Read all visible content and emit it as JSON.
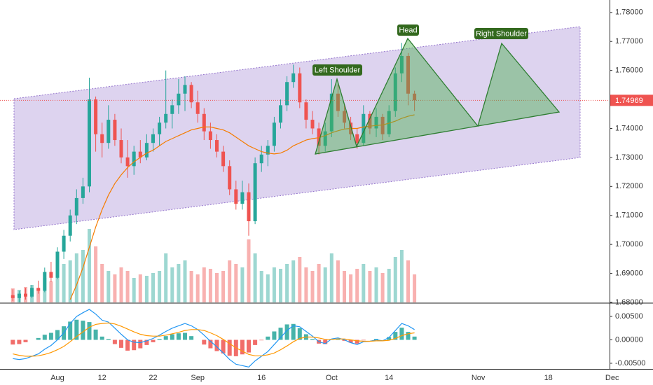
{
  "chart_data": {
    "type": "candlestick",
    "categories": [
      null,
      null,
      null,
      null,
      null,
      null,
      null,
      "Aug",
      null,
      null,
      null,
      null,
      null,
      null,
      "12",
      null,
      null,
      null,
      null,
      null,
      null,
      null,
      "22",
      null,
      null,
      null,
      null,
      null,
      null,
      "Sep",
      null,
      null,
      null,
      null,
      null,
      null,
      null,
      null,
      null,
      "16",
      null,
      null,
      null,
      null,
      null,
      null,
      null,
      null,
      null,
      null,
      "Oct",
      null,
      null,
      null,
      null,
      null,
      null,
      null,
      null,
      "14",
      null,
      null,
      null,
      null,
      null,
      null,
      null,
      null,
      null,
      null,
      null,
      null,
      null,
      "Nov",
      null,
      null,
      null,
      null,
      null,
      null,
      null,
      null,
      null,
      null,
      "18",
      null,
      null,
      null,
      null,
      null,
      null,
      null,
      null,
      null,
      "Dec",
      null,
      null,
      null
    ],
    "open": [
      1.6825,
      1.6815,
      1.683,
      1.682,
      1.685,
      1.684,
      1.6905,
      1.6885,
      1.6975,
      1.703,
      1.71,
      1.716,
      1.72,
      1.75,
      1.738,
      1.735,
      1.743,
      1.736,
      1.73,
      1.727,
      1.732,
      1.73,
      1.735,
      1.738,
      1.742,
      1.745,
      1.748,
      1.752,
      1.755,
      1.749,
      1.745,
      1.739,
      1.736,
      1.732,
      1.727,
      1.719,
      1.714,
      1.718,
      1.708,
      1.728,
      1.731,
      1.734,
      1.742,
      1.748,
      1.756,
      1.759,
      1.749,
      1.743,
      1.74,
      1.734,
      1.739,
      1.752,
      1.746,
      1.742,
      1.738,
      1.735,
      1.745,
      1.74,
      1.744,
      1.738,
      1.746,
      1.759,
      1.765,
      1.752,
      null,
      null,
      null,
      null,
      null,
      null,
      null,
      null,
      null,
      null,
      null,
      null,
      null,
      null,
      null,
      null,
      null,
      null,
      null,
      null,
      null,
      null,
      null,
      null,
      null,
      null,
      null,
      null,
      null,
      null,
      null,
      null,
      null,
      null
    ],
    "high": [
      1.6845,
      1.684,
      1.685,
      1.686,
      1.6875,
      1.692,
      1.694,
      1.699,
      1.705,
      1.712,
      1.719,
      1.723,
      1.7575,
      1.751,
      1.742,
      1.748,
      1.745,
      1.74,
      1.736,
      1.734,
      1.736,
      1.738,
      1.74,
      1.744,
      1.76,
      1.75,
      1.757,
      1.758,
      1.756,
      1.753,
      1.747,
      1.742,
      1.738,
      1.734,
      1.729,
      1.722,
      1.722,
      1.721,
      1.73,
      1.734,
      1.736,
      1.744,
      1.75,
      1.758,
      1.762,
      1.761,
      1.75,
      1.746,
      1.742,
      1.742,
      1.757,
      1.755,
      1.748,
      1.744,
      1.74,
      1.748,
      1.746,
      1.747,
      1.745,
      1.748,
      1.761,
      1.7695,
      1.766,
      1.753,
      null,
      null,
      null,
      null,
      null,
      null,
      null,
      null,
      null,
      null,
      null,
      null,
      null,
      null,
      null,
      null,
      null,
      null,
      null,
      null,
      null,
      null,
      null,
      null,
      null,
      null,
      null,
      null,
      null,
      null,
      null,
      null,
      null,
      null
    ],
    "low": [
      1.6805,
      1.68,
      1.681,
      1.6815,
      1.683,
      1.6835,
      1.687,
      1.688,
      1.695,
      1.701,
      1.707,
      1.714,
      1.718,
      1.732,
      1.73,
      1.733,
      1.734,
      1.728,
      1.723,
      1.724,
      1.728,
      1.729,
      1.732,
      1.734,
      1.74,
      1.74,
      1.745,
      1.746,
      1.747,
      1.742,
      1.736,
      1.733,
      1.73,
      1.725,
      1.717,
      1.712,
      1.712,
      1.703,
      1.707,
      1.725,
      1.727,
      1.732,
      1.74,
      1.746,
      1.754,
      1.747,
      1.74,
      1.738,
      1.731,
      1.732,
      1.737,
      1.744,
      1.74,
      1.736,
      1.733,
      1.734,
      1.738,
      1.737,
      1.736,
      1.737,
      1.744,
      1.756,
      1.748,
      1.746,
      null,
      null,
      null,
      null,
      null,
      null,
      null,
      null,
      null,
      null,
      null,
      null,
      null,
      null,
      null,
      null,
      null,
      null,
      null,
      null,
      null,
      null,
      null,
      null,
      null,
      null,
      null,
      null,
      null,
      null,
      null,
      null,
      null,
      null
    ],
    "close": [
      1.6815,
      1.683,
      1.682,
      1.685,
      1.684,
      1.6905,
      1.6885,
      1.6975,
      1.703,
      1.71,
      1.716,
      1.72,
      1.75,
      1.738,
      1.735,
      1.743,
      1.736,
      1.73,
      1.727,
      1.732,
      1.73,
      1.735,
      1.738,
      1.742,
      1.745,
      1.748,
      1.752,
      1.755,
      1.749,
      1.745,
      1.739,
      1.736,
      1.732,
      1.727,
      1.719,
      1.714,
      1.718,
      1.708,
      1.728,
      1.731,
      1.734,
      1.742,
      1.748,
      1.756,
      1.759,
      1.749,
      1.743,
      1.74,
      1.734,
      1.739,
      1.752,
      1.746,
      1.742,
      1.738,
      1.735,
      1.745,
      1.74,
      1.744,
      1.738,
      1.746,
      1.759,
      1.765,
      1.752,
      1.7497,
      null,
      null,
      null,
      null,
      null,
      null,
      null,
      null,
      null,
      null,
      null,
      null,
      null,
      null,
      null,
      null,
      null,
      null,
      null,
      null,
      null,
      null,
      null,
      null,
      null,
      null,
      null,
      null,
      null,
      null,
      null,
      null,
      null,
      null
    ],
    "up_color": "#26a69a",
    "down_color": "#ef5350",
    "ma": {
      "color": "#f57c00",
      "values": [
        null,
        null,
        null,
        null,
        null,
        null,
        null,
        null,
        null,
        1.681,
        1.686,
        1.692,
        1.699,
        1.706,
        1.712,
        1.717,
        1.721,
        1.724,
        1.7265,
        1.7285,
        1.73,
        1.7315,
        1.7325,
        1.734,
        1.7355,
        1.7365,
        1.7375,
        1.7385,
        1.7395,
        1.74,
        1.7405,
        1.7405,
        1.74,
        1.7395,
        1.7385,
        1.737,
        1.7355,
        1.734,
        1.733,
        1.732,
        1.7315,
        1.7312,
        1.7315,
        1.7325,
        1.734,
        1.735,
        1.736,
        1.7365,
        1.7368,
        1.7375,
        1.7385,
        1.7392,
        1.7398,
        1.74,
        1.74,
        1.7405,
        1.7408,
        1.741,
        1.7412,
        1.7418,
        1.7425,
        1.7435,
        1.7442,
        1.7447,
        null,
        null,
        null,
        null,
        null,
        null,
        null,
        null,
        null,
        null,
        null,
        null,
        null,
        null,
        null,
        null,
        null,
        null,
        null,
        null,
        null,
        null,
        null,
        null,
        null,
        null,
        null,
        null,
        null,
        null,
        null,
        null,
        null,
        null
      ]
    },
    "volume": [
      20,
      18,
      22,
      25,
      20,
      35,
      30,
      40,
      55,
      60,
      70,
      75,
      105,
      80,
      55,
      45,
      40,
      50,
      45,
      35,
      40,
      38,
      42,
      45,
      70,
      50,
      55,
      60,
      45,
      40,
      50,
      48,
      42,
      45,
      60,
      55,
      50,
      90,
      70,
      45,
      40,
      50,
      48,
      55,
      60,
      65,
      50,
      45,
      55,
      50,
      70,
      60,
      45,
      40,
      48,
      55,
      45,
      50,
      42,
      48,
      65,
      75,
      60,
      40,
      null,
      null,
      null,
      null,
      null,
      null,
      null,
      null,
      null,
      null,
      null,
      null,
      null,
      null,
      null,
      null,
      null,
      null,
      null,
      null,
      null,
      null,
      null,
      null,
      null,
      null,
      null,
      null,
      null,
      null,
      null,
      null,
      null,
      null
    ],
    "ylim": [
      1.68,
      1.7843
    ],
    "yticks": [
      {
        "value": 1.68,
        "label": "1.68000"
      },
      {
        "value": 1.69,
        "label": "1.69000"
      },
      {
        "value": 1.7,
        "label": "1.70000"
      },
      {
        "value": 1.71,
        "label": "1.71000"
      },
      {
        "value": 1.72,
        "label": "1.72000"
      },
      {
        "value": 1.73,
        "label": "1.73000"
      },
      {
        "value": 1.74,
        "label": "1.74000"
      },
      {
        "value": 1.76,
        "label": "1.76000"
      },
      {
        "value": 1.77,
        "label": "1.77000"
      },
      {
        "value": 1.78,
        "label": "1.78000"
      }
    ],
    "last_price": 1.74969,
    "last_price_color": "#ef5350",
    "annotations": [
      "Left Shoulder",
      "Head",
      "Right Shoulder"
    ],
    "macd": {
      "macd_color": "#2196f3",
      "signal_color": "#ff9800",
      "ylim": [
        -0.0062,
        0.0077
      ],
      "yticks": [
        {
          "value": 0.005,
          "label": "0.00500"
        },
        {
          "value": 0,
          "label": "0.00000"
        },
        {
          "value": -0.005,
          "label": "-0.00500"
        }
      ],
      "macd": [
        -0.004,
        -0.0042,
        -0.004,
        -0.0035,
        -0.003,
        -0.002,
        -0.0012,
        0.0,
        0.0015,
        0.0035,
        0.005,
        0.0058,
        0.0065,
        0.0055,
        0.0042,
        0.0038,
        0.0025,
        0.0012,
        0.0,
        -0.0005,
        -0.0006,
        -0.0002,
        0.0003,
        0.001,
        0.0018,
        0.0025,
        0.003,
        0.0035,
        0.003,
        0.0022,
        0.001,
        -0.0003,
        -0.0015,
        -0.0028,
        -0.0042,
        -0.0052,
        -0.0055,
        -0.0058,
        -0.0045,
        -0.0035,
        -0.0025,
        -0.001,
        0.0005,
        0.002,
        0.003,
        0.0028,
        0.0018,
        0.0008,
        -0.0004,
        -0.0008,
        0.0002,
        0.0004,
        0.0,
        -0.0006,
        -0.001,
        -0.0004,
        -0.0003,
        0.0,
        -0.0002,
        0.0005,
        0.002,
        0.0035,
        0.003,
        0.0022,
        null,
        null,
        null,
        null,
        null,
        null,
        null,
        null,
        null,
        null,
        null,
        null,
        null,
        null,
        null,
        null,
        null,
        null,
        null,
        null,
        null,
        null,
        null,
        null,
        null,
        null,
        null,
        null,
        null,
        null,
        null,
        null,
        null,
        null
      ],
      "signal": [
        -0.003,
        -0.0033,
        -0.0035,
        -0.0035,
        -0.0034,
        -0.0031,
        -0.0027,
        -0.0021,
        -0.0014,
        -0.0004,
        0.0007,
        0.0017,
        0.0027,
        0.0033,
        0.0035,
        0.0036,
        0.0034,
        0.0029,
        0.0023,
        0.0017,
        0.0012,
        0.0009,
        0.0008,
        0.0008,
        0.001,
        0.0013,
        0.0016,
        0.002,
        0.0022,
        0.0022,
        0.002,
        0.0015,
        0.0009,
        0.0001,
        -0.0008,
        -0.0017,
        -0.0024,
        -0.0031,
        -0.0034,
        -0.0034,
        -0.0032,
        -0.0028,
        -0.0021,
        -0.0013,
        -0.0004,
        0.0003,
        0.0006,
        0.0006,
        0.0004,
        0.0001,
        0.0001,
        0.0002,
        0.0002,
        0.0,
        -0.0002,
        -0.0003,
        -0.0003,
        -0.0002,
        -0.0002,
        -0.0001,
        0.0003,
        0.0009,
        0.0013,
        0.0015,
        null,
        null,
        null,
        null,
        null,
        null,
        null,
        null,
        null,
        null,
        null,
        null,
        null,
        null,
        null,
        null,
        null,
        null,
        null,
        null,
        null,
        null,
        null,
        null,
        null,
        null,
        null,
        null,
        null,
        null,
        null,
        null,
        null,
        null
      ],
      "histogram": [
        -0.001,
        -0.0009,
        -0.0005,
        0.0,
        0.0004,
        0.0011,
        0.0015,
        0.0021,
        0.0029,
        0.0039,
        0.0043,
        0.0041,
        0.0038,
        0.0022,
        0.0007,
        0.0002,
        -0.0009,
        -0.0017,
        -0.0023,
        -0.0022,
        -0.0018,
        -0.0011,
        -0.0005,
        0.0002,
        0.0008,
        0.0012,
        0.0014,
        0.0015,
        0.0008,
        0.0,
        -0.001,
        -0.0018,
        -0.0024,
        -0.0029,
        -0.0034,
        -0.0035,
        -0.0031,
        -0.0027,
        -0.0011,
        -0.0001,
        0.0007,
        0.0018,
        0.0026,
        0.0033,
        0.0034,
        0.0025,
        0.0012,
        0.0002,
        -0.0008,
        -0.0009,
        0.0001,
        0.0002,
        -0.0002,
        -0.0006,
        -0.0008,
        -0.0001,
        0.0,
        0.0002,
        0.0,
        0.0006,
        0.0017,
        0.0026,
        0.0017,
        0.0007,
        null,
        null,
        null,
        null,
        null,
        null,
        null,
        null,
        null,
        null,
        null,
        null,
        null,
        null,
        null,
        null,
        null,
        null,
        null,
        null,
        null,
        null,
        null,
        null,
        null,
        null,
        null,
        null,
        null,
        null,
        null,
        null,
        null,
        null
      ]
    }
  }
}
